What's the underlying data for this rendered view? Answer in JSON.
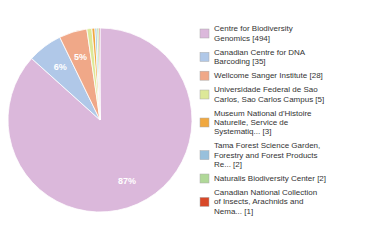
{
  "chart_data": {
    "type": "pie",
    "categories": [
      "Centre for Biodiversity\nGenomics [494]",
      "Canadian Centre for DNA\nBarcoding [35]",
      "Wellcome Sanger Institute [28]",
      "Universidade Federal de Sao\nCarlos, Sao Carlos Campus [5]",
      "Museum National d'Histoire\nNaturelle, Service de\nSystematiq... [3]",
      "Tama Forest Science Garden,\nForestry and Forest Products\nRe... [2]",
      "Naturalis Biodiversity Center [2]",
      "Canadian National Collection\nof Insects, Arachnids and\nNema... [1]"
    ],
    "values": [
      86.67,
      6.14,
      4.91,
      0.88,
      0.53,
      0.35,
      0.35,
      0.18
    ],
    "value_labels": [
      "87%",
      "6%",
      "5%",
      null,
      null,
      null,
      null,
      null
    ],
    "colors": [
      "#dbb8db",
      "#b0c8e8",
      "#f0a888",
      "#dde898",
      "#f0a840",
      "#98c0dc",
      "#b0d898",
      "#d84828"
    ],
    "data_labels": true,
    "legend": "right"
  }
}
